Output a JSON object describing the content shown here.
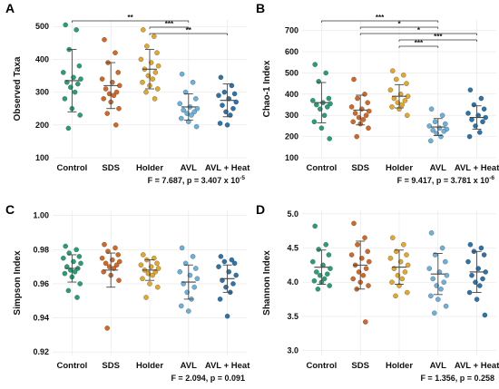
{
  "palette": {
    "Control": "#1a9a72",
    "SDS": "#d25f16",
    "Holder": "#e4a21c",
    "AVL": "#62aedc",
    "AVL + Heat": "#1f6ba6"
  },
  "chart_data": [
    {
      "panel": "A",
      "type": "scatter",
      "categories": [
        "Control",
        "SDS",
        "Holder",
        "AVL",
        "AVL + Heat"
      ],
      "ylabel": "Observed Taxa",
      "ylim": [
        100,
        520
      ],
      "yticks": [
        100,
        200,
        300,
        400,
        500
      ],
      "stat": "F = 7.687, p = 3.407 x 10",
      "stat_exp": "-5",
      "points": [
        [
          505,
          490,
          430,
          380,
          360,
          345,
          340,
          330,
          325,
          315,
          300,
          280,
          250,
          230,
          190
        ],
        [
          460,
          420,
          390,
          360,
          340,
          330,
          320,
          310,
          300,
          295,
          290,
          280,
          270,
          250,
          235,
          200
        ],
        [
          490,
          470,
          440,
          420,
          400,
          390,
          380,
          370,
          360,
          350,
          340,
          330,
          320,
          310,
          300,
          280
        ],
        [
          355,
          330,
          300,
          280,
          265,
          255,
          250,
          245,
          240,
          235,
          230,
          220,
          210,
          195
        ],
        [
          345,
          320,
          300,
          295,
          290,
          280,
          270,
          260,
          250,
          240,
          230,
          205,
          200
        ]
      ],
      "means": [
        335,
        320,
        370,
        255,
        275
      ],
      "sds": [
        95,
        70,
        60,
        40,
        50
      ],
      "brackets": [
        {
          "from": 0,
          "to": 3,
          "label": "**"
        },
        {
          "from": 2,
          "to": 3,
          "label": "***"
        },
        {
          "from": 2,
          "to": 4,
          "label": "**"
        }
      ]
    },
    {
      "panel": "B",
      "type": "scatter",
      "categories": [
        "Control",
        "SDS",
        "Holder",
        "AVL",
        "AVL + Heat"
      ],
      "ylabel": "Chao-1 Index",
      "ylim": [
        100,
        750
      ],
      "yticks": [
        100,
        200,
        300,
        400,
        500,
        600,
        700
      ],
      "stat": "F = 9.417, p = 3.781 x 10",
      "stat_exp": "-6",
      "points": [
        [
          540,
          500,
          460,
          380,
          370,
          360,
          355,
          350,
          340,
          330,
          300,
          270,
          240,
          190
        ],
        [
          470,
          400,
          380,
          360,
          340,
          330,
          320,
          310,
          300,
          290,
          280,
          270,
          260,
          240,
          200
        ],
        [
          510,
          490,
          470,
          450,
          420,
          400,
          390,
          380,
          370,
          360,
          350,
          340,
          330,
          300
        ],
        [
          330,
          300,
          270,
          260,
          250,
          240,
          235,
          230,
          225,
          215,
          200,
          180
        ],
        [
          420,
          380,
          350,
          330,
          310,
          300,
          290,
          280,
          270,
          250,
          220,
          200
        ]
      ],
      "means": [
        360,
        325,
        390,
        245,
        290
      ],
      "sds": [
        95,
        70,
        55,
        40,
        55
      ],
      "brackets": [
        {
          "from": 0,
          "to": 3,
          "label": "***"
        },
        {
          "from": 1,
          "to": 3,
          "label": "*"
        },
        {
          "from": 1,
          "to": 4,
          "label": "*"
        },
        {
          "from": 2,
          "to": 4,
          "label": "***"
        },
        {
          "from": 2,
          "to": 3,
          "label": "***"
        }
      ]
    },
    {
      "panel": "C",
      "type": "scatter",
      "categories": [
        "Control",
        "SDS",
        "Holder",
        "AVL",
        "AVL + Heat"
      ],
      "ylabel": "Simpson Index",
      "ylim": [
        0.918,
        1.003
      ],
      "yticks": [
        "0.92",
        "0.94",
        "0.96",
        "0.98",
        "1.00"
      ],
      "stat": "F = 2.094, p = 0.091",
      "stat_exp": "",
      "points": [
        [
          0.982,
          0.98,
          0.978,
          0.976,
          0.975,
          0.973,
          0.972,
          0.97,
          0.969,
          0.968,
          0.967,
          0.966,
          0.964,
          0.96,
          0.956,
          0.952
        ],
        [
          0.983,
          0.981,
          0.979,
          0.977,
          0.975,
          0.974,
          0.973,
          0.972,
          0.971,
          0.97,
          0.969,
          0.967,
          0.965,
          0.962,
          0.934
        ],
        [
          0.977,
          0.975,
          0.974,
          0.972,
          0.971,
          0.97,
          0.969,
          0.968,
          0.967,
          0.966,
          0.965,
          0.963,
          0.96,
          0.958,
          0.952
        ],
        [
          0.981,
          0.976,
          0.972,
          0.969,
          0.967,
          0.965,
          0.963,
          0.96,
          0.958,
          0.955,
          0.951,
          0.947,
          0.944
        ],
        [
          0.976,
          0.974,
          0.973,
          0.972,
          0.97,
          0.967,
          0.965,
          0.962,
          0.96,
          0.958,
          0.955,
          0.951,
          0.941
        ]
      ],
      "means": [
        0.969,
        0.968,
        0.968,
        0.961,
        0.963
      ],
      "sds": [
        0.008,
        0.01,
        0.006,
        0.01,
        0.008
      ],
      "brackets": []
    },
    {
      "panel": "D",
      "type": "scatter",
      "categories": [
        "Control",
        "SDS",
        "Holder",
        "AVL",
        "AVL + Heat"
      ],
      "ylabel": "Shannon Index",
      "ylim": [
        2.93,
        5.05
      ],
      "yticks": [
        "3.0",
        "3.5",
        "4.0",
        "4.5",
        "5.0"
      ],
      "stat": "F = 1.356, p = 0.258",
      "stat_exp": "",
      "points": [
        [
          4.82,
          4.55,
          4.48,
          4.4,
          4.3,
          4.25,
          4.2,
          4.15,
          4.12,
          4.1,
          4.05,
          4.02,
          4.0,
          3.95,
          3.9
        ],
        [
          4.86,
          4.65,
          4.55,
          4.45,
          4.4,
          4.35,
          4.3,
          4.25,
          4.2,
          4.15,
          4.1,
          4.05,
          4.0,
          3.95,
          3.9,
          3.42
        ],
        [
          4.65,
          4.55,
          4.45,
          4.4,
          4.35,
          4.3,
          4.25,
          4.2,
          4.15,
          4.1,
          4.05,
          4.0,
          3.95,
          3.85,
          3.8
        ],
        [
          4.72,
          4.5,
          4.4,
          4.3,
          4.2,
          4.15,
          4.1,
          4.05,
          4.0,
          3.95,
          3.9,
          3.8,
          3.75,
          3.65,
          3.55
        ],
        [
          4.55,
          4.5,
          4.45,
          4.4,
          4.3,
          4.2,
          4.15,
          4.1,
          4.05,
          4.0,
          3.95,
          3.85,
          3.75,
          3.52
        ]
      ],
      "means": [
        4.22,
        4.25,
        4.22,
        4.12,
        4.15
      ],
      "sds": [
        0.25,
        0.35,
        0.25,
        0.3,
        0.3
      ],
      "brackets": []
    }
  ]
}
